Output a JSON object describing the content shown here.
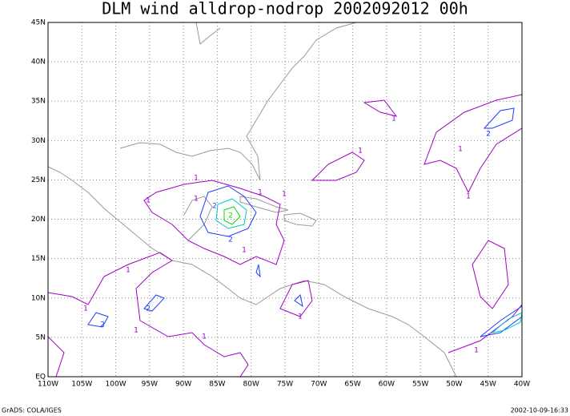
{
  "map": {
    "title": "DLM wind alldrop-nodrop 2002092012 00h",
    "lat_labels": [
      "EQ",
      "5N",
      "10N",
      "15N",
      "20N",
      "25N",
      "30N",
      "35N",
      "40N",
      "45N"
    ],
    "lon_labels": [
      "110W",
      "105W",
      "100W",
      "95W",
      "90W",
      "85W",
      "80W",
      "75W",
      "70W",
      "65W",
      "60W",
      "55W",
      "50W",
      "45W",
      "40W"
    ],
    "contour_labels": [
      "1",
      "1",
      "1",
      "2",
      "2",
      "2",
      "1",
      "1",
      "1",
      "1",
      "2",
      "2",
      "1",
      "1",
      "1",
      "1",
      "1",
      "2",
      "1",
      "1",
      "1",
      "1"
    ],
    "footer_left": "GrADS: COLA/IGES",
    "footer_right": "2002-10-09-16:33"
  }
}
